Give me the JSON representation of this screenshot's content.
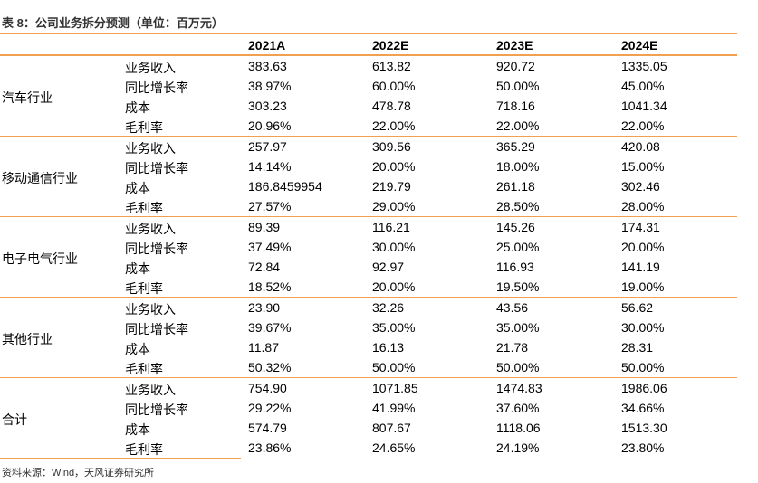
{
  "title": "表 8：公司业务拆分预测（单位：百万元）",
  "columns": [
    "2021A",
    "2022E",
    "2023E",
    "2024E"
  ],
  "groups": [
    {
      "name": "汽车行业",
      "rows": [
        {
          "label": "业务收入",
          "values": [
            "383.63",
            "613.82",
            "920.72",
            "1335.05"
          ]
        },
        {
          "label": "同比增长率",
          "values": [
            "38.97%",
            "60.00%",
            "50.00%",
            "45.00%"
          ]
        },
        {
          "label": "成本",
          "values": [
            "303.23",
            "478.78",
            "718.16",
            "1041.34"
          ]
        },
        {
          "label": "毛利率",
          "values": [
            "20.96%",
            "22.00%",
            "22.00%",
            "22.00%"
          ]
        }
      ]
    },
    {
      "name": "移动通信行业",
      "rows": [
        {
          "label": "业务收入",
          "values": [
            "257.97",
            "309.56",
            "365.29",
            "420.08"
          ]
        },
        {
          "label": "同比增长率",
          "values": [
            "14.14%",
            "20.00%",
            "18.00%",
            "15.00%"
          ]
        },
        {
          "label": "成本",
          "values": [
            "186.8459954",
            "219.79",
            "261.18",
            "302.46"
          ]
        },
        {
          "label": "毛利率",
          "values": [
            "27.57%",
            "29.00%",
            "28.50%",
            "28.00%"
          ]
        }
      ]
    },
    {
      "name": "电子电气行业",
      "rows": [
        {
          "label": "业务收入",
          "values": [
            "89.39",
            "116.21",
            "145.26",
            "174.31"
          ]
        },
        {
          "label": "同比增长率",
          "values": [
            "37.49%",
            "30.00%",
            "25.00%",
            "20.00%"
          ]
        },
        {
          "label": "成本",
          "values": [
            "72.84",
            "92.97",
            "116.93",
            "141.19"
          ]
        },
        {
          "label": "毛利率",
          "values": [
            "18.52%",
            "20.00%",
            "19.50%",
            "19.00%"
          ]
        }
      ]
    },
    {
      "name": "其他行业",
      "rows": [
        {
          "label": "业务收入",
          "values": [
            "23.90",
            "32.26",
            "43.56",
            "56.62"
          ]
        },
        {
          "label": "同比增长率",
          "values": [
            "39.67%",
            "35.00%",
            "35.00%",
            "30.00%"
          ]
        },
        {
          "label": "成本",
          "values": [
            "11.87",
            "16.13",
            "21.78",
            "28.31"
          ]
        },
        {
          "label": "毛利率",
          "values": [
            "50.32%",
            "50.00%",
            "50.00%",
            "50.00%"
          ]
        }
      ]
    },
    {
      "name": "合计",
      "rows": [
        {
          "label": "业务收入",
          "values": [
            "754.90",
            "1071.85",
            "1474.83",
            "1986.06"
          ]
        },
        {
          "label": "同比增长率",
          "values": [
            "29.22%",
            "41.99%",
            "37.60%",
            "34.66%"
          ]
        },
        {
          "label": "成本",
          "values": [
            "574.79",
            "807.67",
            "1118.06",
            "1513.30"
          ]
        },
        {
          "label": "毛利率",
          "values": [
            "23.86%",
            "24.65%",
            "24.19%",
            "23.80%"
          ]
        }
      ]
    }
  ],
  "source": "资料来源：Wind，天风证券研究所"
}
